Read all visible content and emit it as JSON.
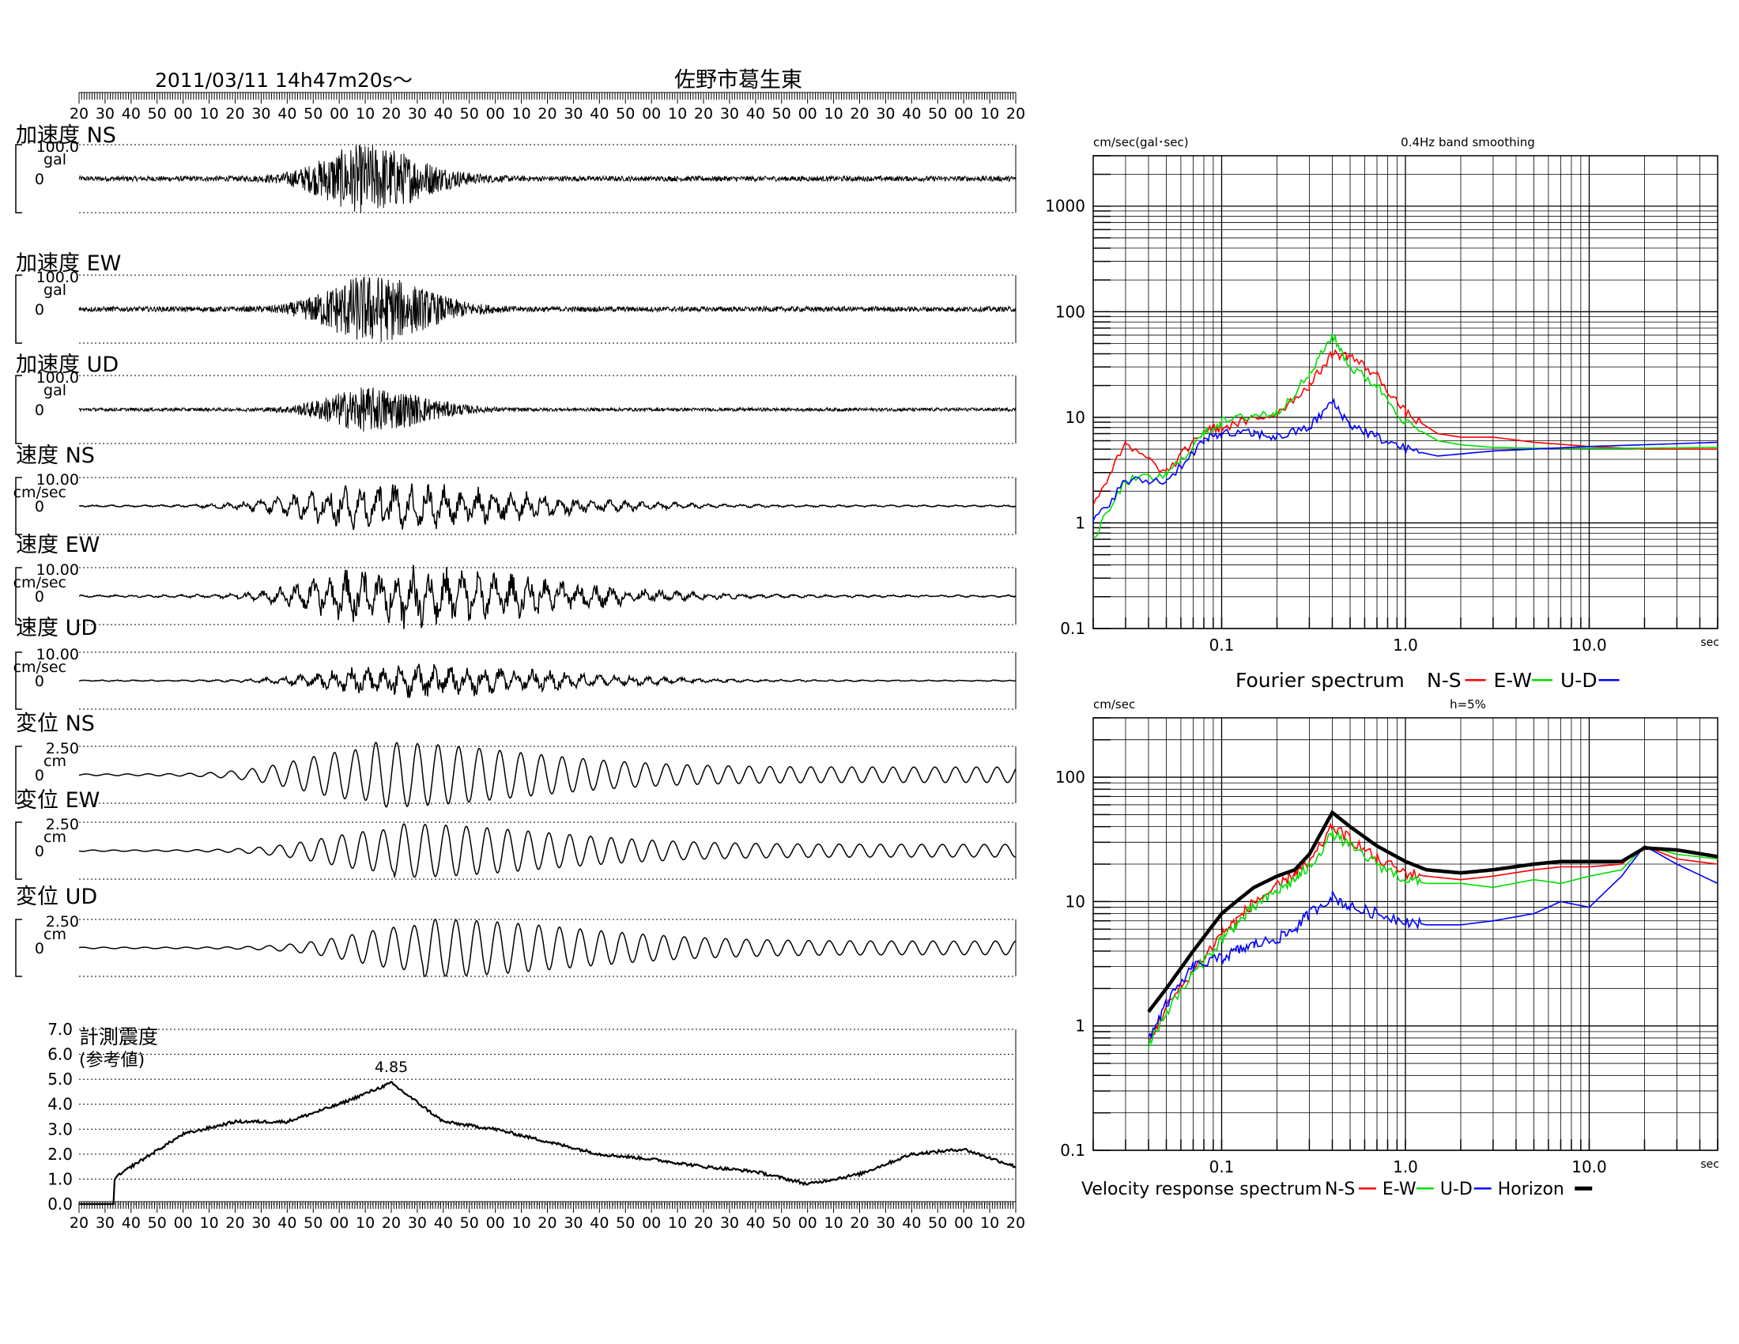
{
  "header": {
    "datetime": "2011/03/11  14h47m20s〜",
    "station": "佐野市葛生東"
  },
  "time_ticks": [
    "20",
    "30",
    "40",
    "50",
    "00",
    "10",
    "20",
    "30",
    "40",
    "50",
    "00",
    "10",
    "20",
    "30",
    "40",
    "50",
    "00",
    "10",
    "20",
    "30",
    "40",
    "50",
    "00",
    "10",
    "20",
    "30",
    "40",
    "50",
    "00",
    "10",
    "20",
    "30",
    "40",
    "50",
    "00",
    "10",
    "20"
  ],
  "traces": [
    {
      "title": "加速度 NS",
      "scale": "100.0",
      "unit": "gal",
      "zero": "0"
    },
    {
      "title": "加速度 EW",
      "scale": "100.0",
      "unit": "gal",
      "zero": "0"
    },
    {
      "title": "加速度 UD",
      "scale": "100.0",
      "unit": "gal",
      "zero": "0"
    },
    {
      "title": "速度 NS",
      "scale": "10.00",
      "unit": "cm/sec",
      "zero": "0"
    },
    {
      "title": "速度 EW",
      "scale": "10.00",
      "unit": "cm/sec",
      "zero": "0"
    },
    {
      "title": "速度 UD",
      "scale": "10.00",
      "unit": "cm/sec",
      "zero": "0"
    },
    {
      "title": "変位 NS",
      "scale": "2.50",
      "unit": "cm",
      "zero": "0"
    },
    {
      "title": "変位 EW",
      "scale": "2.50",
      "unit": "cm",
      "zero": "0"
    },
    {
      "title": "変位 UD",
      "scale": "2.50",
      "unit": "cm",
      "zero": "0"
    }
  ],
  "intensity": {
    "title": "計測震度",
    "subtitle": "(参考値)",
    "peak_label": "4.85",
    "y_ticks": [
      "7.0",
      "6.0",
      "5.0",
      "4.0",
      "3.0",
      "2.0",
      "1.0",
      "0.0"
    ]
  },
  "fourier": {
    "ylabel": "cm/sec(gal･sec)",
    "note": "0.4Hz band smoothing",
    "y_ticks": [
      "1000",
      "100",
      "10",
      "1",
      "0.1"
    ],
    "x_ticks": [
      "0.1",
      "1.0",
      "10.0"
    ],
    "x_unit": "sec",
    "legend_title": "Fourier spectrum",
    "legend": [
      {
        "label": "N-S",
        "color": "#ff0000"
      },
      {
        "label": "E-W",
        "color": "#00dd00"
      },
      {
        "label": "U-D",
        "color": "#0000ff"
      }
    ]
  },
  "response": {
    "ylabel": "cm/sec",
    "note": "h=5%",
    "y_ticks": [
      "100",
      "10",
      "1",
      "0.1"
    ],
    "x_ticks": [
      "0.1",
      "1.0",
      "10.0"
    ],
    "x_unit": "sec",
    "legend_title": "Velocity response spectrum",
    "legend": [
      {
        "label": "N-S",
        "color": "#ff0000"
      },
      {
        "label": "E-W",
        "color": "#00dd00"
      },
      {
        "label": "U-D",
        "color": "#0000ff"
      },
      {
        "label": "Horizon",
        "color": "#000000"
      }
    ]
  },
  "chart_data": [
    {
      "type": "line",
      "title": "計測震度",
      "subtitle": "(参考値)",
      "ylim": [
        0,
        7
      ],
      "x": [
        "14:47:20",
        "14:47:40",
        "14:48:00",
        "14:48:20",
        "14:48:40",
        "14:49:00",
        "14:49:20",
        "14:49:40",
        "14:50:00",
        "14:50:20",
        "14:50:40",
        "14:51:00",
        "14:51:20",
        "14:51:40",
        "14:52:00",
        "14:52:20",
        "14:52:40",
        "14:53:00",
        "14:53:20"
      ],
      "series": [
        {
          "name": "計測震度",
          "values": [
            0.0,
            1.5,
            2.8,
            3.3,
            3.3,
            4.0,
            4.85,
            3.3,
            3.0,
            2.5,
            2.0,
            1.8,
            1.5,
            1.3,
            0.8,
            1.2,
            2.0,
            2.2,
            1.5
          ]
        }
      ],
      "annotations": [
        {
          "label": "4.85",
          "value": 4.85
        }
      ]
    },
    {
      "type": "line",
      "title": "0.4Hz band smoothing",
      "ylabel": "cm/sec(gal･sec)",
      "scale": "log-log",
      "xlim": [
        0.02,
        50
      ],
      "ylim": [
        0.1,
        3000
      ],
      "x": [
        0.02,
        0.03,
        0.05,
        0.08,
        0.1,
        0.15,
        0.2,
        0.3,
        0.4,
        0.5,
        0.7,
        1.0,
        1.5,
        2,
        3,
        5,
        10,
        20,
        50
      ],
      "series": [
        {
          "name": "N-S",
          "color": "#ff0000",
          "values": [
            1.5,
            5.5,
            3.0,
            7.5,
            8.0,
            9.5,
            11,
            20,
            40,
            38,
            25,
            11,
            7,
            6.5,
            6.5,
            5.8,
            5.3,
            5.0,
            5.0
          ]
        },
        {
          "name": "E-W",
          "color": "#00dd00",
          "values": [
            0.7,
            2.5,
            2.8,
            7.0,
            9.0,
            10.5,
            11,
            25,
            60,
            30,
            20,
            9,
            6,
            5.5,
            5.2,
            5.1,
            5.1,
            5.1,
            5.2
          ]
        },
        {
          "name": "U-D",
          "color": "#0000ff",
          "values": [
            1.0,
            2.5,
            2.5,
            6.0,
            7.0,
            7.0,
            6.5,
            8.0,
            14,
            8.5,
            6.5,
            5.0,
            4.3,
            4.5,
            4.8,
            5.0,
            5.3,
            5.5,
            5.8
          ]
        }
      ]
    },
    {
      "type": "line",
      "title": "h=5%",
      "ylabel": "cm/sec",
      "scale": "log-log",
      "xlim": [
        0.02,
        50
      ],
      "ylim": [
        0.1,
        300
      ],
      "x": [
        0.04,
        0.05,
        0.07,
        0.1,
        0.12,
        0.15,
        0.2,
        0.25,
        0.3,
        0.4,
        0.5,
        0.7,
        1.0,
        1.3,
        2,
        3,
        5,
        7,
        10,
        15,
        20,
        30,
        50
      ],
      "series": [
        {
          "name": "N-S",
          "color": "#ff0000",
          "values": [
            0.75,
            1.4,
            2.8,
            5.5,
            7.0,
            10,
            13,
            17,
            20,
            40,
            32,
            22,
            17,
            16,
            15,
            16,
            18,
            19,
            19,
            20,
            28,
            22,
            20
          ]
        },
        {
          "name": "E-W",
          "color": "#00dd00",
          "values": [
            0.7,
            1.3,
            2.6,
            5.0,
            6.5,
            9.0,
            12,
            15,
            19,
            35,
            28,
            20,
            15,
            14,
            14,
            13,
            15,
            14,
            16,
            18,
            28,
            24,
            22
          ]
        },
        {
          "name": "U-D",
          "color": "#0000ff",
          "values": [
            0.8,
            1.5,
            3.0,
            3.5,
            4.0,
            4.5,
            5.0,
            6.0,
            8.0,
            11,
            9.0,
            8.0,
            7.0,
            6.5,
            6.5,
            7.0,
            8.0,
            10,
            9.0,
            16,
            28,
            20,
            14
          ]
        },
        {
          "name": "Horizon",
          "color": "#000000",
          "values": [
            1.3,
            2.0,
            4.0,
            8.0,
            10,
            13,
            16,
            18,
            24,
            52,
            40,
            28,
            21,
            18,
            17,
            18,
            20,
            21,
            21,
            21,
            27,
            26,
            23
          ]
        }
      ]
    }
  ]
}
